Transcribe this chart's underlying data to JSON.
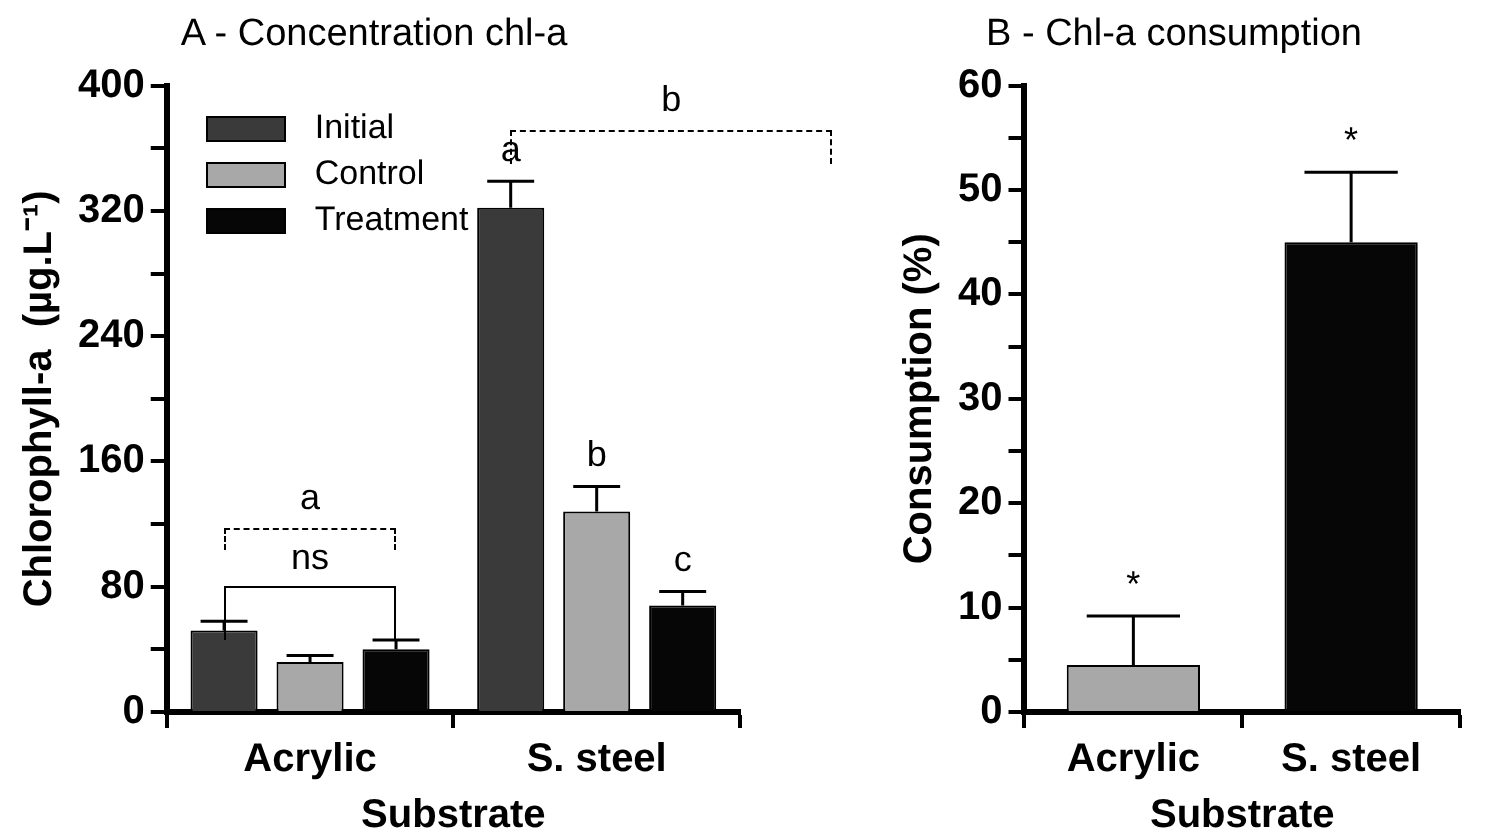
{
  "chart_data": [
    {
      "type": "bar",
      "title": "A - Concentration chl-a",
      "xlabel": "Substrate",
      "ylabel": "Chlorophyll-a  (µg.L⁻¹)",
      "categories": [
        "Acrylic",
        "S. steel"
      ],
      "series": [
        {
          "name": "Initial",
          "color": "#3a3a3a",
          "values": [
            52,
            322
          ],
          "errors": [
            [
              52,
              58
            ],
            [
              322,
              339
            ]
          ]
        },
        {
          "name": "Control",
          "color": "#a8a8a8",
          "values": [
            32,
            128
          ],
          "errors": [
            [
              32,
              36
            ],
            [
              128,
              144
            ]
          ]
        },
        {
          "name": "Treatment",
          "color": "#060606",
          "values": [
            40,
            68
          ],
          "errors": [
            [
              40,
              46
            ],
            [
              68,
              77
            ]
          ]
        }
      ],
      "ylim": [
        0,
        400
      ],
      "yticks": [
        0,
        {
          "value": 40,
          "label": null
        },
        80,
        {
          "value": 120,
          "label": null
        },
        160,
        {
          "value": 200,
          "label": null
        },
        240,
        {
          "value": 280,
          "label": null
        },
        320,
        {
          "value": 360,
          "label": null
        },
        400
      ],
      "grid": false,
      "legend": "top left",
      "annotations": [
        "a",
        "ns",
        "b",
        "a",
        "b",
        "c"
      ]
    },
    {
      "type": "bar",
      "title": "B - Chl-a consumption",
      "xlabel": "Substrate",
      "ylabel": "Consumption (%)",
      "categories": [
        "Acrylic",
        "S. steel"
      ],
      "values": [
        4.5,
        45
      ],
      "colors": [
        "#a8a8a8",
        "#060606"
      ],
      "errors": [
        [
          4.5,
          9.2
        ],
        [
          45,
          51.7
        ]
      ],
      "ylim": [
        0,
        60
      ],
      "yticks": [
        0,
        {
          "value": 5,
          "label": null
        },
        10,
        {
          "value": 15,
          "label": null
        },
        20,
        {
          "value": 25,
          "label": null
        },
        30,
        {
          "value": 35,
          "label": null
        },
        40,
        {
          "value": 45,
          "label": null
        },
        50,
        {
          "value": 55,
          "label": null
        },
        60
      ],
      "grid": false,
      "legend": false,
      "annotations": [
        "*",
        "*"
      ]
    }
  ]
}
